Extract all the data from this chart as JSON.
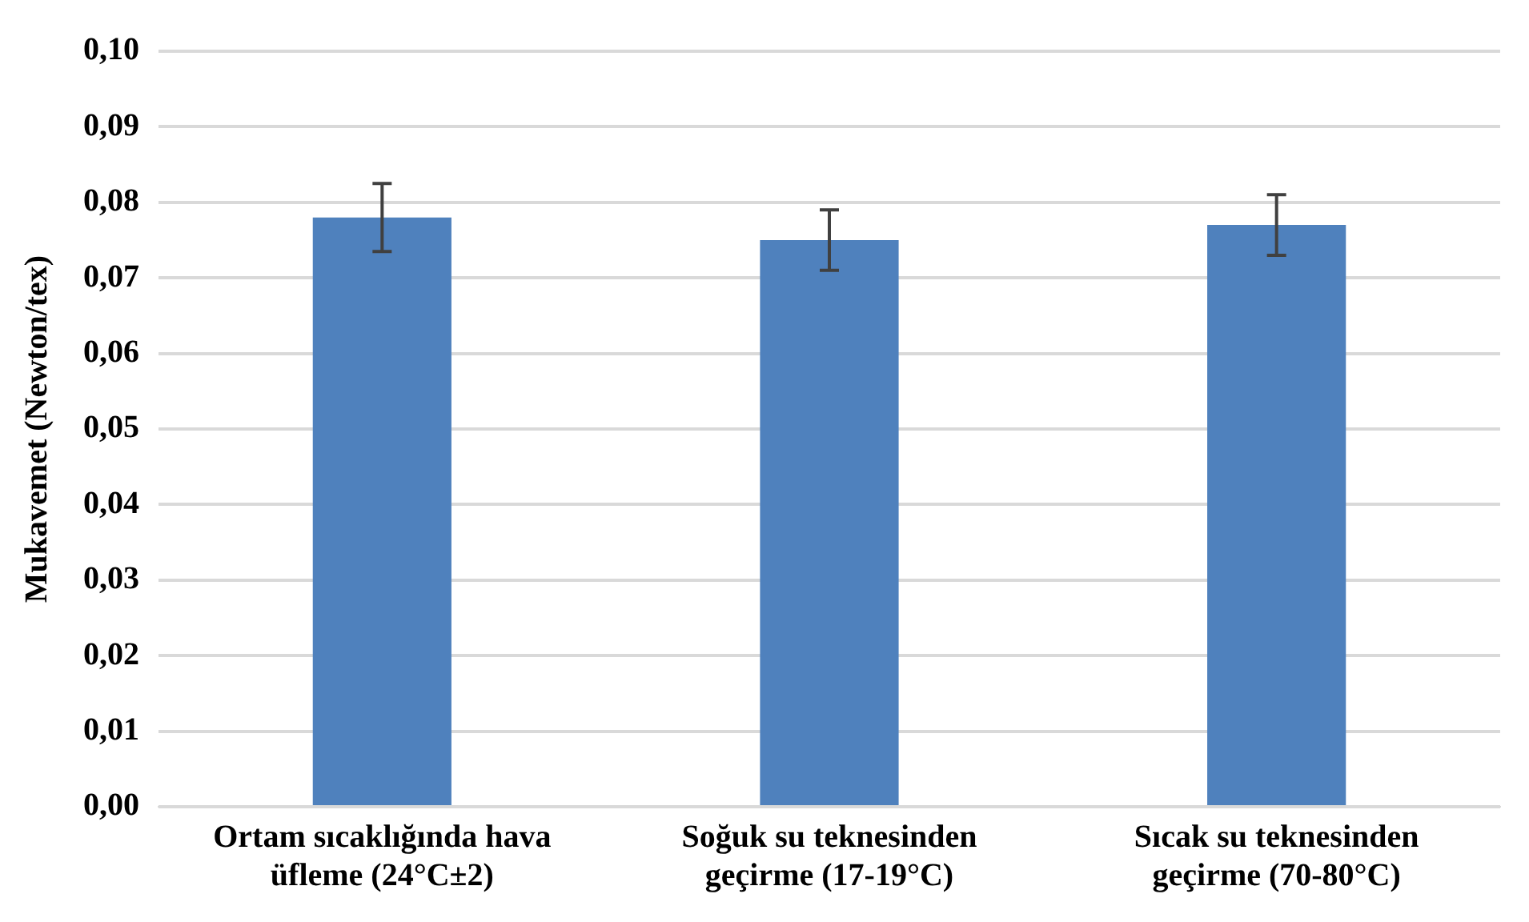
{
  "chart_data": {
    "type": "bar",
    "ylabel": "Mukavemet (Newton/tex)",
    "categories": [
      "Ortam sıcaklığında hava üfleme (24°C±2)",
      "Soğuk su teknesinden geçirme (17-19°C)",
      "Sıcak su teknesinden geçirme (70-80°C)"
    ],
    "values": [
      0.078,
      0.075,
      0.077
    ],
    "errors": [
      0.0045,
      0.004,
      0.004
    ],
    "color": "#4f81bd",
    "ylim": [
      0,
      0.1
    ],
    "yticks": [
      {
        "value": 0,
        "label": "0,00"
      },
      {
        "value": 0.01,
        "label": "0,01"
      },
      {
        "value": 0.02,
        "label": "0,02"
      },
      {
        "value": 0.03,
        "label": "0,03"
      },
      {
        "value": 0.04,
        "label": "0,04"
      },
      {
        "value": 0.05,
        "label": "0,05"
      },
      {
        "value": 0.06,
        "label": "0,06"
      },
      {
        "value": 0.07,
        "label": "0,07"
      },
      {
        "value": 0.08,
        "label": "0,08"
      },
      {
        "value": 0.09,
        "label": "0,09"
      },
      {
        "value": 0.1,
        "label": "0,10"
      }
    ],
    "grid": "y",
    "legend": false
  }
}
